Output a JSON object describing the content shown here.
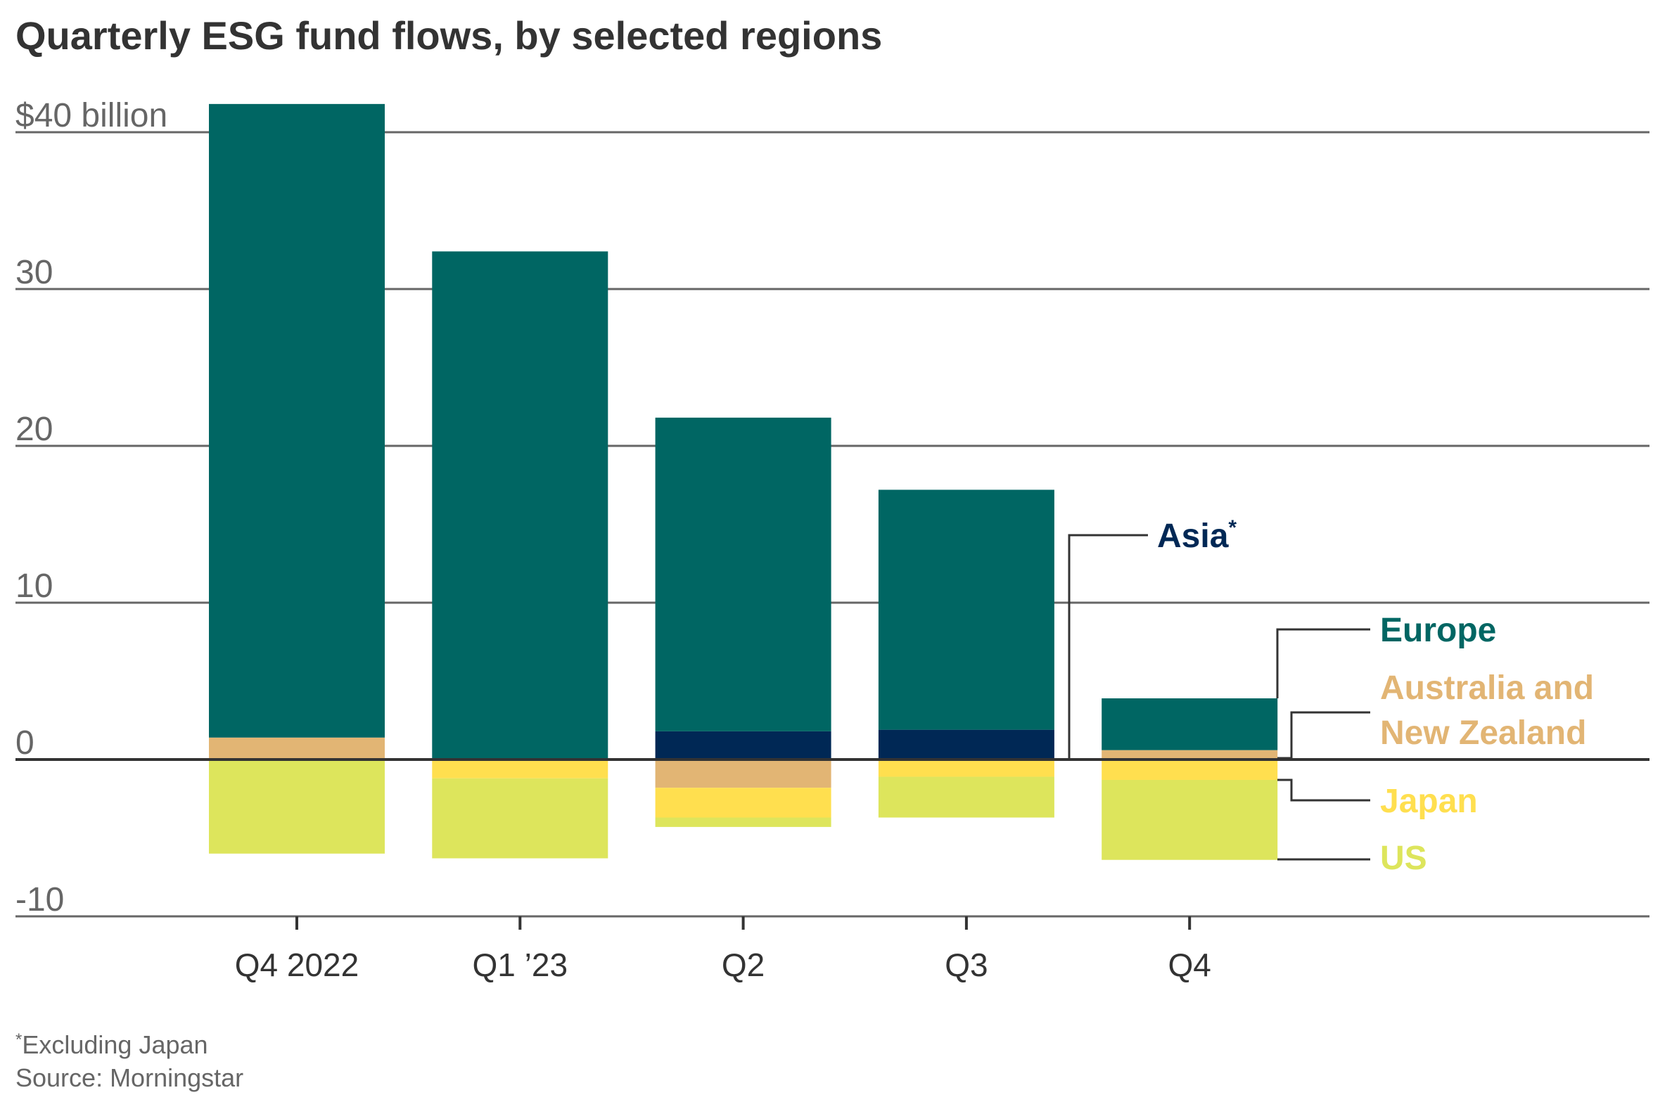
{
  "chart_data": {
    "type": "bar",
    "stacked": true,
    "title": "Quarterly ESG fund flows, by selected regions",
    "ylabel": "",
    "xlabel": "",
    "unit_label": "$40 billion",
    "ylim": [
      -10,
      40
    ],
    "yticks": [
      -10,
      0,
      10,
      20,
      30,
      40
    ],
    "ytick_labels": [
      "-10",
      "0",
      "10",
      "20",
      "30",
      "$40 billion"
    ],
    "grid": true,
    "legend_placement": "right, direct labels",
    "categories": [
      "Q4 2022",
      "Q1 ’23",
      "Q2",
      "Q3",
      "Q4"
    ],
    "series": [
      {
        "name": "Asia*",
        "color": "#002855",
        "values": [
          0,
          0,
          1.8,
          1.9,
          0
        ]
      },
      {
        "name": "Australia and New Zealand",
        "color": "#e2b574",
        "values": [
          1.4,
          0,
          -1.8,
          0,
          0.6
        ]
      },
      {
        "name": "Europe",
        "color": "#006663",
        "values": [
          40.4,
          32.4,
          20.0,
          15.3,
          3.3
        ]
      },
      {
        "name": "Japan",
        "color": "#ffdf4f",
        "values": [
          0,
          -1.2,
          -1.9,
          -1.1,
          -1.3
        ]
      },
      {
        "name": "US",
        "color": "#dde55c",
        "values": [
          -6.0,
          -5.1,
          -0.6,
          -2.6,
          -5.1
        ]
      }
    ],
    "legend_lines": {
      "asia": "Asia",
      "asia_mark": "*",
      "europe": "Europe",
      "anz_1": "Australia and",
      "anz_2": "New Zealand",
      "japan": "Japan",
      "us": "US"
    },
    "footnote_mark": "*",
    "footnote": "Excluding Japan",
    "source": "Source: Morningstar"
  }
}
